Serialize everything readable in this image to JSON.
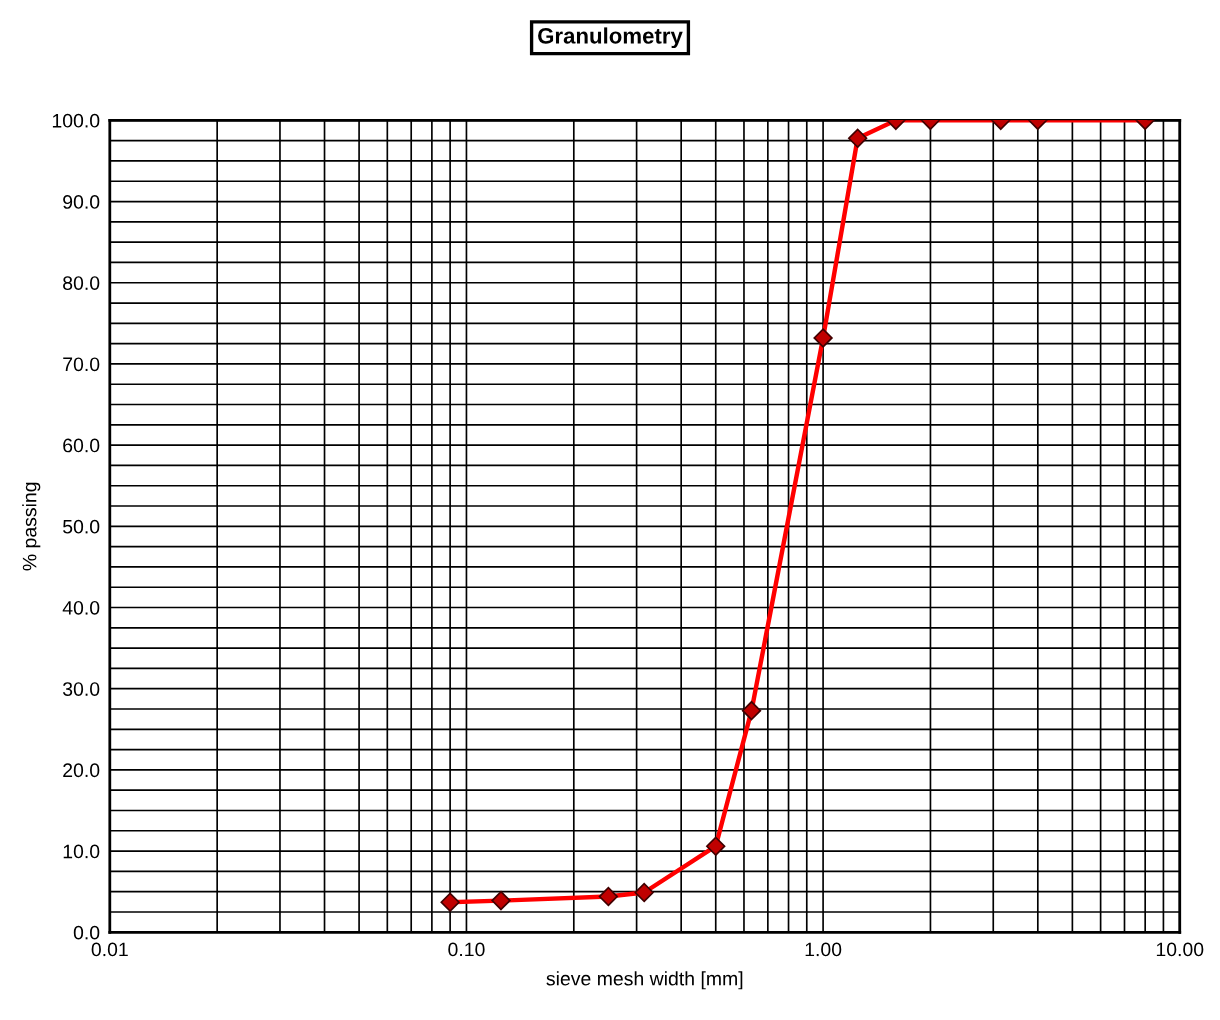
{
  "chart_data": {
    "type": "line",
    "title": "Granulometry",
    "xlabel": "sieve mesh width [mm]",
    "ylabel": "% passing",
    "x": [
      0.09,
      0.125,
      0.25,
      0.315,
      0.5,
      0.63,
      1.0,
      1.25,
      1.6,
      2.0,
      3.15,
      4.0,
      8.0
    ],
    "series": [
      {
        "color": "#ff0000",
        "values": [
          3.7,
          3.9,
          4.4,
          4.9,
          10.6,
          27.3,
          73.2,
          97.8,
          100,
          100,
          100,
          100,
          100
        ]
      }
    ],
    "log": "x",
    "xlim": [
      0.01,
      10
    ],
    "xticks": [
      {
        "value": 0.01,
        "label": "0.01"
      },
      {
        "value": 0.1,
        "label": "0.10"
      },
      {
        "value": 1,
        "label": "1.00"
      },
      {
        "value": 10,
        "label": "10.00"
      }
    ],
    "ylim": [
      0,
      100
    ],
    "yticks": [
      {
        "value": 0,
        "label": "0.0"
      },
      {
        "value": 10,
        "label": "10.0"
      },
      {
        "value": 20,
        "label": "20.0"
      },
      {
        "value": 30,
        "label": "30.0"
      },
      {
        "value": 40,
        "label": "40.0"
      },
      {
        "value": 50,
        "label": "50.0"
      },
      {
        "value": 60,
        "label": "60.0"
      },
      {
        "value": 70,
        "label": "70.0"
      },
      {
        "value": 80,
        "label": "80.0"
      },
      {
        "value": 90,
        "label": "90.0"
      },
      {
        "value": 100,
        "label": "100.0"
      }
    ],
    "grid": true,
    "marker": "diamond",
    "line_style": "solid"
  }
}
